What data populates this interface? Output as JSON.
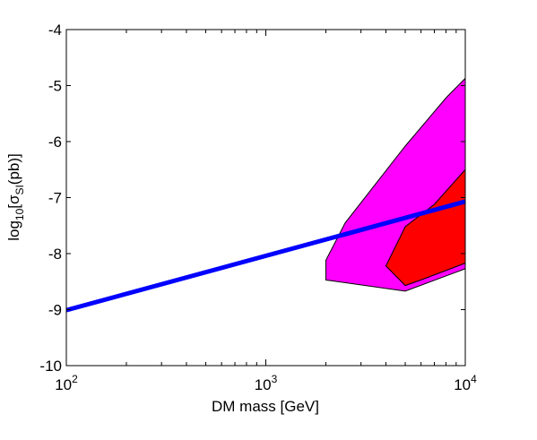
{
  "chart_data": {
    "type": "area",
    "x_scale": "log",
    "xlim": [
      100,
      10000
    ],
    "ylim": [
      -10,
      -4
    ],
    "xlabel": "DM mass [GeV]",
    "ylabel": {
      "prefix": "log",
      "sub1": "10",
      "mid": "[σ",
      "sub2": "SI",
      "suffix": "(pb)]"
    },
    "x_ticks": [
      {
        "value": 100,
        "base": "10",
        "exp": "2"
      },
      {
        "value": 1000,
        "base": "10",
        "exp": "3"
      },
      {
        "value": 10000,
        "base": "10",
        "exp": "4"
      }
    ],
    "y_ticks": [
      {
        "value": -10,
        "label": "-10"
      },
      {
        "value": -9,
        "label": "-9"
      },
      {
        "value": -8,
        "label": "-8"
      },
      {
        "value": -7,
        "label": "-7"
      },
      {
        "value": -6,
        "label": "-6"
      },
      {
        "value": -5,
        "label": "-5"
      },
      {
        "value": -4,
        "label": "-4"
      }
    ],
    "grid": false,
    "series": [
      {
        "kind": "region",
        "color": "#ff00ff",
        "points": [
          [
            2000,
            -8.12
          ],
          [
            2000,
            -8.47
          ],
          [
            5000,
            -8.67
          ],
          [
            10000,
            -8.27
          ],
          [
            10000,
            -4.87
          ],
          [
            8000,
            -5.22
          ],
          [
            5000,
            -6.08
          ],
          [
            2500,
            -7.45
          ],
          [
            2000,
            -8.12
          ]
        ]
      },
      {
        "kind": "region",
        "color": "#ff0000",
        "points": [
          [
            4000,
            -8.22
          ],
          [
            5000,
            -8.57
          ],
          [
            6000,
            -8.47
          ],
          [
            10000,
            -8.17
          ],
          [
            10000,
            -6.5
          ],
          [
            7000,
            -7.12
          ],
          [
            5000,
            -7.52
          ],
          [
            4000,
            -8.22
          ]
        ]
      },
      {
        "kind": "line",
        "color": "#0000ff",
        "points": [
          [
            100,
            -9.01
          ],
          [
            10000,
            -7.07
          ]
        ]
      }
    ]
  }
}
